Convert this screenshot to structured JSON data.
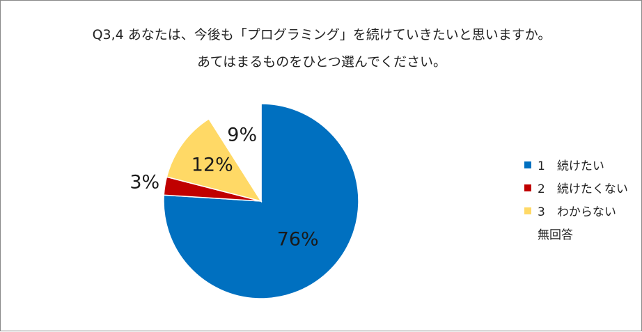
{
  "chart_data": {
    "type": "pie",
    "title": "Q3,4 あなたは、今後も「プログラミング」を続けていきたいと思いますか。",
    "subtitle": "あてはまるものをひとつ選んでください。",
    "slices": [
      {
        "label": "1　続けたい",
        "value": 76,
        "display": "76%",
        "color": "#0070C0"
      },
      {
        "label": "2　続けたくない",
        "value": 3,
        "display": "3%",
        "color": "#C00000"
      },
      {
        "label": "3　わからない",
        "value": 12,
        "display": "12%",
        "color": "#FFD966"
      },
      {
        "label": "無回答",
        "value": 9,
        "display": "9%",
        "color": "#FFFFFF"
      }
    ],
    "legend_position": "right"
  }
}
